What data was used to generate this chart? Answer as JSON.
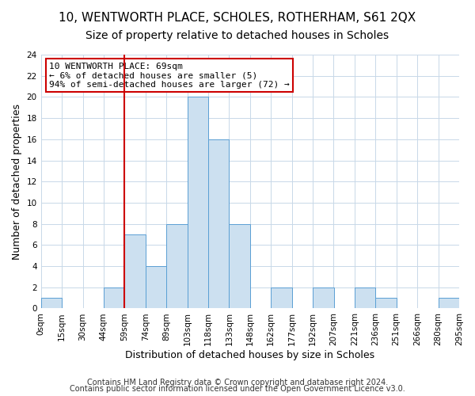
{
  "title1": "10, WENTWORTH PLACE, SCHOLES, ROTHERHAM, S61 2QX",
  "title2": "Size of property relative to detached houses in Scholes",
  "xlabel": "Distribution of detached houses by size in Scholes",
  "ylabel": "Number of detached properties",
  "bar_color": "#cce0f0",
  "bar_edgecolor": "#5a9fd4",
  "vline_color": "#cc0000",
  "vline_x_index": 4,
  "annotation_text": "10 WENTWORTH PLACE: 69sqm\n← 6% of detached houses are smaller (5)\n94% of semi-detached houses are larger (72) →",
  "annotation_box_edgecolor": "#cc0000",
  "bins": [
    "0sqm",
    "15sqm",
    "30sqm",
    "44sqm",
    "59sqm",
    "74sqm",
    "89sqm",
    "103sqm",
    "118sqm",
    "133sqm",
    "148sqm",
    "162sqm",
    "177sqm",
    "192sqm",
    "207sqm",
    "221sqm",
    "236sqm",
    "251sqm",
    "266sqm",
    "280sqm",
    "295sqm"
  ],
  "values": [
    1,
    0,
    0,
    2,
    7,
    4,
    8,
    20,
    16,
    8,
    0,
    2,
    0,
    2,
    0,
    2,
    1,
    0,
    0,
    1
  ],
  "ylim": [
    0,
    24
  ],
  "yticks": [
    0,
    2,
    4,
    6,
    8,
    10,
    12,
    14,
    16,
    18,
    20,
    22,
    24
  ],
  "footnote1": "Contains HM Land Registry data © Crown copyright and database right 2024.",
  "footnote2": "Contains public sector information licensed under the Open Government Licence v3.0.",
  "title1_fontsize": 11,
  "title2_fontsize": 10,
  "xlabel_fontsize": 9,
  "ylabel_fontsize": 9,
  "tick_fontsize": 7.5,
  "annot_fontsize": 8,
  "footnote_fontsize": 7
}
